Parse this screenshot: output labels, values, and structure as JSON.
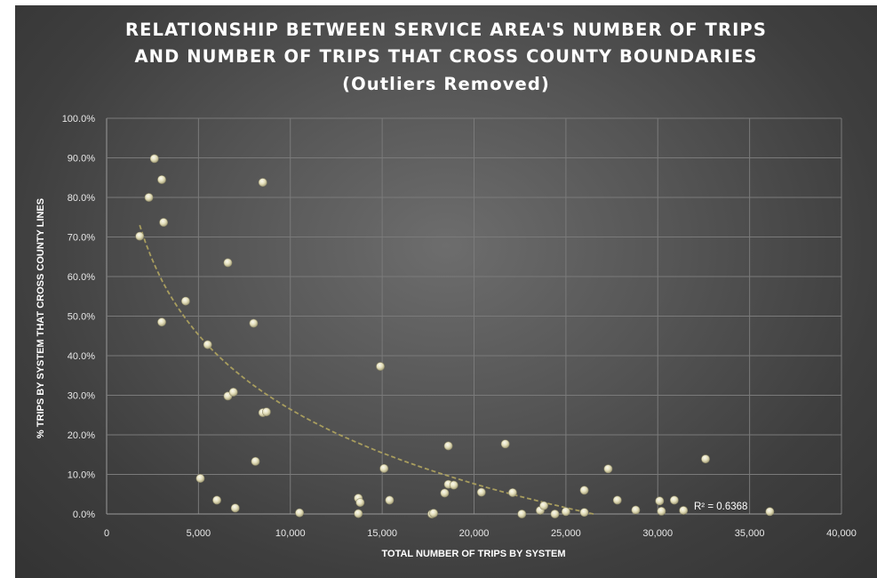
{
  "chart_data": {
    "type": "scatter",
    "title_lines": [
      "RELATIONSHIP BETWEEN SERVICE AREA'S NUMBER OF TRIPS",
      "AND NUMBER OF TRIPS THAT CROSS COUNTY BOUNDARIES",
      "(Outliers Removed)"
    ],
    "xlabel": "TOTAL NUMBER OF TRIPS BY SYSTEM",
    "ylabel": "% TRIPS BY SYSTEM THAT CROSS COUNTY LINES",
    "xlim": [
      0,
      40000
    ],
    "ylim": [
      0,
      100
    ],
    "x_ticks": [
      {
        "value": 0,
        "label": "0"
      },
      {
        "value": 5000,
        "label": "5,000"
      },
      {
        "value": 10000,
        "label": "10,000"
      },
      {
        "value": 15000,
        "label": "15,000"
      },
      {
        "value": 20000,
        "label": "20,000"
      },
      {
        "value": 25000,
        "label": "25,000"
      },
      {
        "value": 30000,
        "label": "30,000"
      },
      {
        "value": 35000,
        "label": "35,000"
      },
      {
        "value": 40000,
        "label": "40,000"
      }
    ],
    "y_ticks": [
      {
        "value": 0,
        "label": "0.0%"
      },
      {
        "value": 10,
        "label": "10.0%"
      },
      {
        "value": 20,
        "label": "20.0%"
      },
      {
        "value": 30,
        "label": "30.0%"
      },
      {
        "value": 40,
        "label": "40.0%"
      },
      {
        "value": 50,
        "label": "50.0%"
      },
      {
        "value": 60,
        "label": "60.0%"
      },
      {
        "value": 70,
        "label": "70.0%"
      },
      {
        "value": 80,
        "label": "80.0%"
      },
      {
        "value": 90,
        "label": "90.0%"
      },
      {
        "value": 100,
        "label": "100.0%"
      }
    ],
    "grid": true,
    "gridlines": "vertical and horizontal",
    "point_color": "#e8e4c8",
    "trendline": {
      "type": "logarithmic",
      "style": "dashed",
      "color": "#a89d5e",
      "x_range": [
        1800,
        26500
      ],
      "fitted_points": [
        [
          1800,
          73
        ],
        [
          26500,
          0
        ]
      ],
      "r_squared_label": "R² = 0.6368"
    },
    "points": [
      {
        "x": 1800,
        "y": 70.2
      },
      {
        "x": 2300,
        "y": 80.0
      },
      {
        "x": 2600,
        "y": 89.8
      },
      {
        "x": 3000,
        "y": 84.5
      },
      {
        "x": 3100,
        "y": 73.7
      },
      {
        "x": 3000,
        "y": 48.5
      },
      {
        "x": 4300,
        "y": 53.8
      },
      {
        "x": 5100,
        "y": 9.0
      },
      {
        "x": 5500,
        "y": 42.8
      },
      {
        "x": 6000,
        "y": 3.5
      },
      {
        "x": 6600,
        "y": 63.5
      },
      {
        "x": 6600,
        "y": 29.8
      },
      {
        "x": 6900,
        "y": 30.8
      },
      {
        "x": 7000,
        "y": 1.5
      },
      {
        "x": 8000,
        "y": 48.2
      },
      {
        "x": 8100,
        "y": 13.3
      },
      {
        "x": 8500,
        "y": 83.8
      },
      {
        "x": 8500,
        "y": 25.6
      },
      {
        "x": 8700,
        "y": 25.8
      },
      {
        "x": 10500,
        "y": 0.3
      },
      {
        "x": 13700,
        "y": 4.0
      },
      {
        "x": 13800,
        "y": 2.9
      },
      {
        "x": 13700,
        "y": 0.1
      },
      {
        "x": 14900,
        "y": 37.3
      },
      {
        "x": 15100,
        "y": 11.5
      },
      {
        "x": 15400,
        "y": 3.5
      },
      {
        "x": 17700,
        "y": 0.0
      },
      {
        "x": 17800,
        "y": 0.2
      },
      {
        "x": 18400,
        "y": 5.3
      },
      {
        "x": 18600,
        "y": 7.5
      },
      {
        "x": 18600,
        "y": 17.2
      },
      {
        "x": 18900,
        "y": 7.3
      },
      {
        "x": 20400,
        "y": 5.5
      },
      {
        "x": 21700,
        "y": 17.7
      },
      {
        "x": 22100,
        "y": 5.4
      },
      {
        "x": 22600,
        "y": 0.0
      },
      {
        "x": 23600,
        "y": 0.9
      },
      {
        "x": 23800,
        "y": 2.1
      },
      {
        "x": 24400,
        "y": 0.0
      },
      {
        "x": 25000,
        "y": 0.6
      },
      {
        "x": 26000,
        "y": 6.0
      },
      {
        "x": 26000,
        "y": 0.4
      },
      {
        "x": 27300,
        "y": 11.4
      },
      {
        "x": 27800,
        "y": 3.5
      },
      {
        "x": 28800,
        "y": 1.0
      },
      {
        "x": 30100,
        "y": 3.3
      },
      {
        "x": 30200,
        "y": 0.7
      },
      {
        "x": 30900,
        "y": 3.5
      },
      {
        "x": 31400,
        "y": 0.9
      },
      {
        "x": 32600,
        "y": 13.9
      },
      {
        "x": 36100,
        "y": 0.6
      }
    ]
  }
}
